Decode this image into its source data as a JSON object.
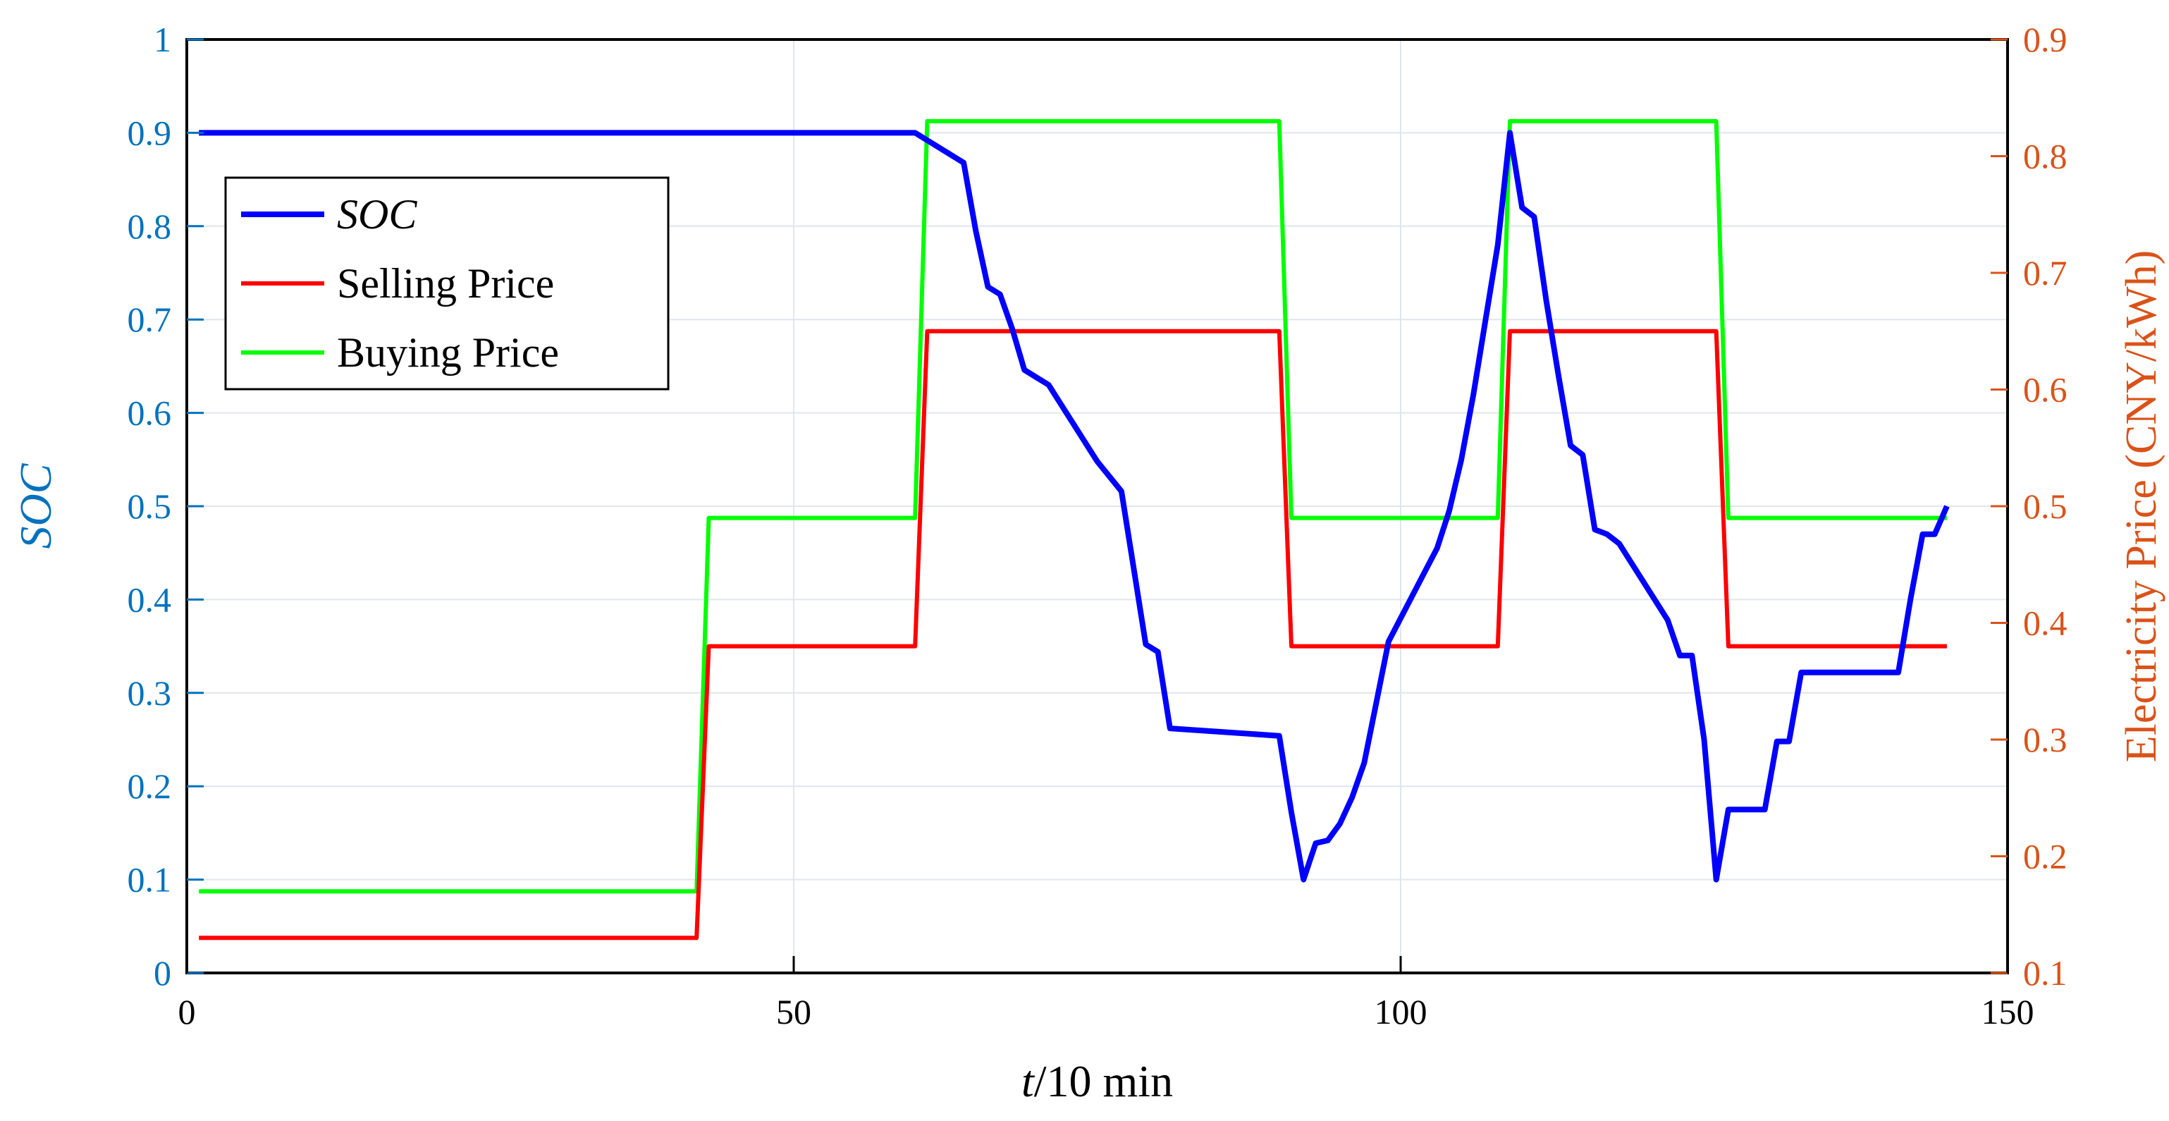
{
  "chart_data": {
    "type": "line",
    "xlabel_var": "t",
    "xlabel_unit": "/10 min",
    "ylabel_left": "SOC",
    "ylabel_right": "Electricity Price (CNY/kWh)",
    "xlim": [
      0,
      150
    ],
    "ylim_left": [
      0,
      1
    ],
    "ylim_right": [
      0.1,
      0.9
    ],
    "xticks": [
      0,
      50,
      100,
      150
    ],
    "yticks_left": [
      0,
      0.1,
      0.2,
      0.3,
      0.4,
      0.5,
      0.6,
      0.7,
      0.8,
      0.9,
      1
    ],
    "yticks_right": [
      0.1,
      0.2,
      0.3,
      0.4,
      0.5,
      0.6,
      0.7,
      0.8,
      0.9
    ],
    "grid": true,
    "legend_position": "top-left",
    "series": [
      {
        "name": "SOC",
        "axis": "left",
        "color": "#0000FF",
        "x": [
          1,
          60,
          64,
          65,
          66,
          67,
          68,
          69,
          70,
          71,
          75,
          77,
          78,
          79,
          80,
          81,
          90,
          91,
          92,
          93,
          94,
          95,
          96,
          97,
          98,
          99,
          100,
          101,
          102,
          103,
          104,
          105,
          106,
          107,
          108,
          109,
          110,
          111,
          112,
          113,
          114,
          115,
          116,
          117,
          118,
          122,
          123,
          124,
          125,
          126,
          127,
          128,
          129,
          130,
          131,
          132,
          133,
          134,
          135,
          136,
          137,
          138,
          139,
          140,
          141,
          142,
          143,
          144,
          145
        ],
        "y": [
          0.9,
          0.9,
          0.868,
          0.795,
          0.735,
          0.727,
          0.69,
          0.646,
          0.638,
          0.63,
          0.548,
          0.516,
          0.434,
          0.352,
          0.344,
          0.262,
          0.254,
          0.172,
          0.1,
          0.139,
          0.142,
          0.16,
          0.188,
          0.225,
          0.29,
          0.355,
          0.38,
          0.405,
          0.43,
          0.455,
          0.495,
          0.55,
          0.62,
          0.7,
          0.78,
          0.9,
          0.82,
          0.81,
          0.72,
          0.64,
          0.565,
          0.555,
          0.475,
          0.47,
          0.46,
          0.378,
          0.34,
          0.34,
          0.25,
          0.1,
          0.175,
          0.175,
          0.175,
          0.175,
          0.248,
          0.248,
          0.322,
          0.322,
          0.322,
          0.322,
          0.322,
          0.322,
          0.322,
          0.322,
          0.322,
          0.4,
          0.47,
          0.47,
          0.5
        ]
      },
      {
        "name": "Selling Price",
        "axis": "right",
        "color": "#FF0000",
        "x": [
          1,
          42,
          43,
          60,
          61,
          90,
          91,
          108,
          109,
          126,
          127,
          145
        ],
        "y": [
          0.13,
          0.13,
          0.38,
          0.38,
          0.65,
          0.65,
          0.38,
          0.38,
          0.65,
          0.65,
          0.38,
          0.38
        ]
      },
      {
        "name": "Buying Price",
        "axis": "right",
        "color": "#00FF00",
        "x": [
          1,
          42,
          43,
          60,
          61,
          90,
          91,
          108,
          109,
          126,
          127,
          145
        ],
        "y": [
          0.17,
          0.17,
          0.49,
          0.49,
          0.83,
          0.83,
          0.49,
          0.49,
          0.83,
          0.83,
          0.49,
          0.49
        ]
      }
    ]
  }
}
